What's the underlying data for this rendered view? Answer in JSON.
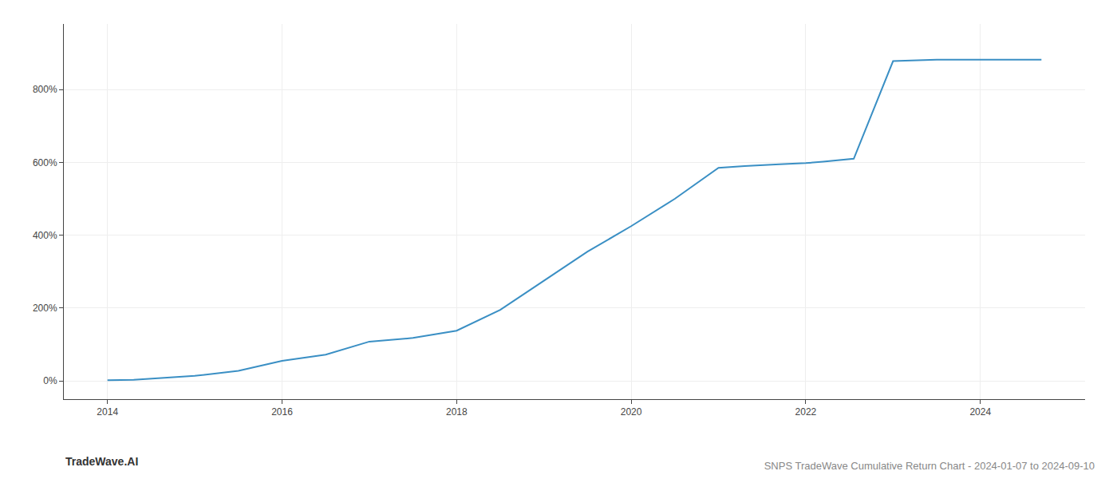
{
  "chart_data": {
    "type": "line",
    "title": "SNPS TradeWave Cumulative Return Chart - 2024-01-07 to 2024-09-10",
    "annotations": [
      "TradeWave.AI"
    ],
    "x": [
      2014.0,
      2014.3,
      2015.0,
      2015.5,
      2016.0,
      2016.5,
      2017.0,
      2017.5,
      2018.0,
      2018.5,
      2019.0,
      2019.5,
      2020.0,
      2020.5,
      2021.0,
      2021.3,
      2021.7,
      2022.0,
      2022.2,
      2022.55,
      2023.0,
      2023.5,
      2024.0,
      2024.7
    ],
    "values": [
      2,
      3,
      14,
      28,
      55,
      72,
      108,
      118,
      138,
      195,
      275,
      355,
      425,
      500,
      585,
      590,
      595,
      598,
      602,
      610,
      878,
      882,
      882,
      882
    ],
    "color": "#3a8fc4",
    "xlim": [
      2013.5,
      2025.2
    ],
    "ylim": [
      -50,
      980
    ],
    "xticks": [
      2014,
      2016,
      2018,
      2020,
      2022,
      2024
    ],
    "yticks": [
      {
        "value": 0,
        "label": "0%"
      },
      {
        "value": 200,
        "label": "200%"
      },
      {
        "value": 400,
        "label": "400%"
      },
      {
        "value": 600,
        "label": "600%"
      },
      {
        "value": 800,
        "label": "800%"
      }
    ],
    "grid": true
  }
}
